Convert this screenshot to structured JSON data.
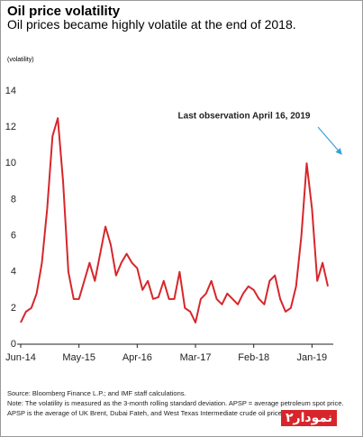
{
  "chart_data": {
    "type": "line",
    "title": "Oil price volatility",
    "subtitle": "Oil prices became highly volatile at the end of 2018.",
    "y_label": "(volatility)",
    "annotation": "Last observation April 16, 2019",
    "source": "Source: Bloomberg Finance L.P.; and IMF staff calculations.",
    "note": "Note: The volatility is measured as the 3-month rolling standard deviation. APSP = average petroleum spot price. APSP is the average of UK Brent, Dubai Fateh, and West Texas Intermediate crude oil prices.",
    "logo": "نمودار۲",
    "color": "#d7262b",
    "categories": [
      "Jun-14",
      null,
      null,
      null,
      null,
      null,
      null,
      null,
      null,
      null,
      null,
      "May-15",
      null,
      null,
      null,
      null,
      null,
      null,
      null,
      null,
      null,
      null,
      "Apr-16",
      null,
      null,
      null,
      null,
      null,
      null,
      null,
      null,
      null,
      null,
      "Mar-17",
      null,
      null,
      null,
      null,
      null,
      null,
      null,
      null,
      null,
      null,
      "Feb-18",
      null,
      null,
      null,
      null,
      null,
      null,
      null,
      null,
      null,
      null,
      "Jan-19",
      null,
      null,
      null
    ],
    "values": [
      1.2,
      1.8,
      2.0,
      2.8,
      4.5,
      7.5,
      11.5,
      12.5,
      9,
      4,
      2.5,
      2.5,
      3.5,
      4.5,
      3.5,
      5,
      6.5,
      5.5,
      3.8,
      4.5,
      5,
      4.5,
      4.2,
      3,
      3.5,
      2.5,
      2.6,
      3.5,
      2.5,
      2.5,
      4,
      2,
      1.8,
      1.2,
      2.5,
      2.8,
      3.5,
      2.5,
      2.2,
      2.8,
      2.5,
      2.2,
      2.8,
      3.2,
      3.0,
      2.5,
      2.2,
      3.5,
      3.8,
      2.5,
      1.8,
      2,
      3.2,
      6,
      10,
      7.5,
      3.5,
      4.5,
      3.2
    ],
    "ylim": [
      0,
      14
    ],
    "yticks": [
      0,
      2,
      4,
      6,
      8,
      10,
      12,
      14
    ],
    "grid": false
  }
}
